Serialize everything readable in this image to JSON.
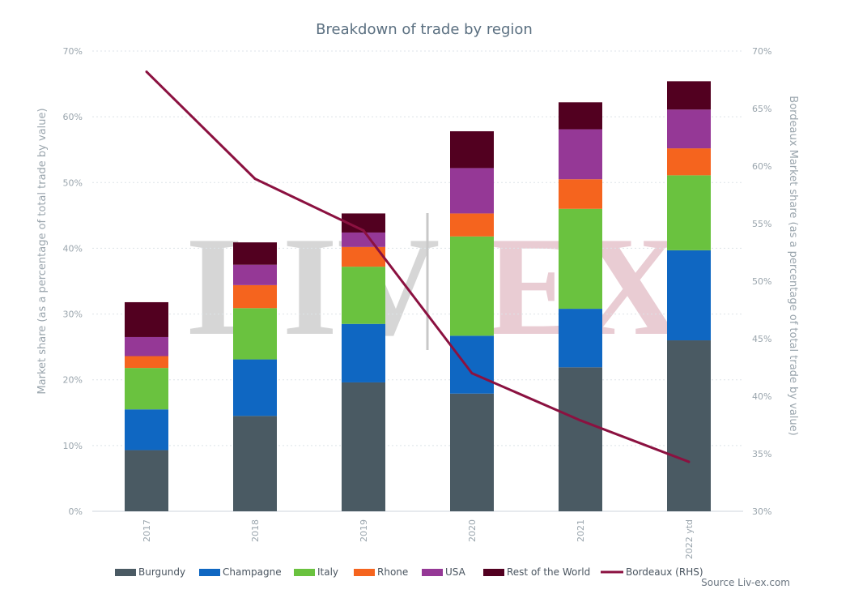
{
  "chart_data": {
    "type": "bar",
    "title": "Breakdown of trade by region",
    "ylabel": "Market share (as a percentage of total trade by value)",
    "y2label": "Bordeaux Market share (as a percentage of total trade by value)",
    "ylim": [
      0,
      70
    ],
    "y2lim": [
      30,
      70
    ],
    "yticks": [
      "0%",
      "10%",
      "20%",
      "30%",
      "40%",
      "50%",
      "60%",
      "70%"
    ],
    "y2ticks": [
      "30%",
      "35%",
      "40%",
      "45%",
      "50%",
      "55%",
      "60%",
      "65%",
      "70%"
    ],
    "categories": [
      "2017",
      "2018",
      "2019",
      "2020",
      "2021",
      "2022 ytd"
    ],
    "stacked": true,
    "grid": true,
    "legend_position": "bottom",
    "series": [
      {
        "name": "Burgundy",
        "color": "#4a5a63",
        "values": [
          9.3,
          14.5,
          19.6,
          17.9,
          21.9,
          26.0
        ]
      },
      {
        "name": "Champagne",
        "color": "#0f67c2",
        "values": [
          6.2,
          8.6,
          8.9,
          8.8,
          8.9,
          13.7
        ]
      },
      {
        "name": "Italy",
        "color": "#6ac23f",
        "values": [
          6.3,
          7.8,
          8.7,
          15.1,
          15.2,
          11.4
        ]
      },
      {
        "name": "Rhone",
        "color": "#f5641e",
        "values": [
          1.8,
          3.5,
          3.0,
          3.5,
          4.5,
          4.1
        ]
      },
      {
        "name": "USA",
        "color": "#953896",
        "values": [
          2.9,
          3.1,
          2.2,
          6.9,
          7.6,
          5.9
        ]
      },
      {
        "name": "Rest of the World",
        "color": "#520020",
        "values": [
          5.3,
          3.4,
          2.9,
          5.6,
          4.1,
          4.3
        ]
      }
    ],
    "line_series": {
      "name": "Bordeaux (RHS)",
      "color": "#8b1140",
      "axis": "right",
      "values": [
        68.2,
        58.9,
        54.4,
        42.0,
        37.9,
        34.3
      ]
    },
    "watermark": {
      "left": "LIV",
      "right": "EX"
    },
    "source": "Source Liv-ex.com"
  }
}
